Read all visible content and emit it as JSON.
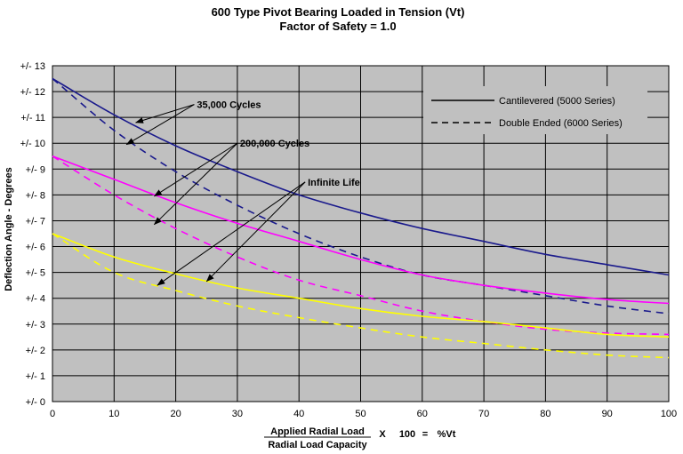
{
  "chart_data": {
    "type": "line",
    "title": "600 Type Pivot Bearing Loaded in Tension (Vt)",
    "subtitle": "Factor of Safety = 1.0",
    "ylabel": "Deflection Angle - Degrees",
    "xlabel": {
      "numerator": "Applied Radial Load",
      "denominator": "Radial Load Capacity",
      "times": "X",
      "multiplier": "100",
      "equals": "=",
      "result": "%Vt"
    },
    "xlim": [
      0,
      100
    ],
    "ylim": [
      0,
      13
    ],
    "x_ticks": [
      0,
      10,
      20,
      30,
      40,
      50,
      60,
      70,
      80,
      90,
      100
    ],
    "y_tick_values": [
      0,
      1,
      2,
      3,
      4,
      5,
      6,
      7,
      8,
      9,
      10,
      11,
      12,
      13
    ],
    "y_tick_labels": [
      "+/- 0",
      "+/- 1",
      "+/- 2",
      "+/- 3",
      "+/- 4",
      "+/- 5",
      "+/- 6",
      "+/- 7",
      "+/- 8",
      "+/- 9",
      "+/- 10",
      "+/- 11",
      "+/- 12",
      "+/- 13"
    ],
    "grid": true,
    "plot_background": "#c0c0c0",
    "legend_position": "top-right",
    "legend": [
      {
        "label": "Cantilevered (5000 Series)",
        "dash": "solid"
      },
      {
        "label": "Double Ended (6000 Series)",
        "dash": "dashed"
      }
    ],
    "x": [
      0,
      10,
      20,
      30,
      40,
      50,
      60,
      70,
      80,
      90,
      100
    ],
    "series": [
      {
        "group": "35,000 Cycles",
        "style": "Cantilevered (5000 Series)",
        "dash": "solid",
        "color": "#1a1a8c",
        "values": [
          12.5,
          11.1,
          9.9,
          8.9,
          8.0,
          7.3,
          6.7,
          6.2,
          5.7,
          5.3,
          4.9
        ]
      },
      {
        "group": "35,000 Cycles",
        "style": "Double Ended (6000 Series)",
        "dash": "dashed",
        "color": "#1a1a8c",
        "values": [
          12.5,
          10.5,
          8.9,
          7.6,
          6.5,
          5.6,
          4.9,
          4.5,
          4.1,
          3.7,
          3.4
        ]
      },
      {
        "group": "200,000 Cycles",
        "style": "Cantilevered (5000 Series)",
        "dash": "solid",
        "color": "#ff00ff",
        "values": [
          9.5,
          8.6,
          7.7,
          6.9,
          6.2,
          5.5,
          4.9,
          4.5,
          4.2,
          3.95,
          3.8
        ]
      },
      {
        "group": "200,000 Cycles",
        "style": "Double Ended (6000 Series)",
        "dash": "dashed",
        "color": "#ff00ff",
        "values": [
          9.5,
          8.0,
          6.7,
          5.6,
          4.7,
          4.1,
          3.5,
          3.1,
          2.8,
          2.65,
          2.6
        ]
      },
      {
        "group": "Infinite Life",
        "style": "Cantilevered (5000 Series)",
        "dash": "solid",
        "color": "#ffff00",
        "values": [
          6.5,
          5.6,
          4.95,
          4.4,
          4.0,
          3.6,
          3.3,
          3.1,
          2.85,
          2.6,
          2.5
        ]
      },
      {
        "group": "Infinite Life",
        "style": "Double Ended (6000 Series)",
        "dash": "dashed",
        "color": "#ffff00",
        "values": [
          6.5,
          5.0,
          4.3,
          3.7,
          3.25,
          2.85,
          2.5,
          2.25,
          2.0,
          1.8,
          1.7
        ]
      }
    ],
    "annotations": [
      {
        "text": "35,000 Cycles",
        "x": 23,
        "y": 11.5,
        "arrows": [
          [
            13.5,
            10.8
          ],
          [
            12,
            9.95
          ]
        ]
      },
      {
        "text": "200,000 Cycles",
        "x": 30,
        "y": 10.0,
        "arrows": [
          [
            16.5,
            7.95
          ],
          [
            16.5,
            6.85
          ]
        ]
      },
      {
        "text": "Infinite Life",
        "x": 41,
        "y": 8.5,
        "arrows": [
          [
            17,
            4.5
          ],
          [
            25,
            4.65
          ]
        ]
      }
    ]
  }
}
